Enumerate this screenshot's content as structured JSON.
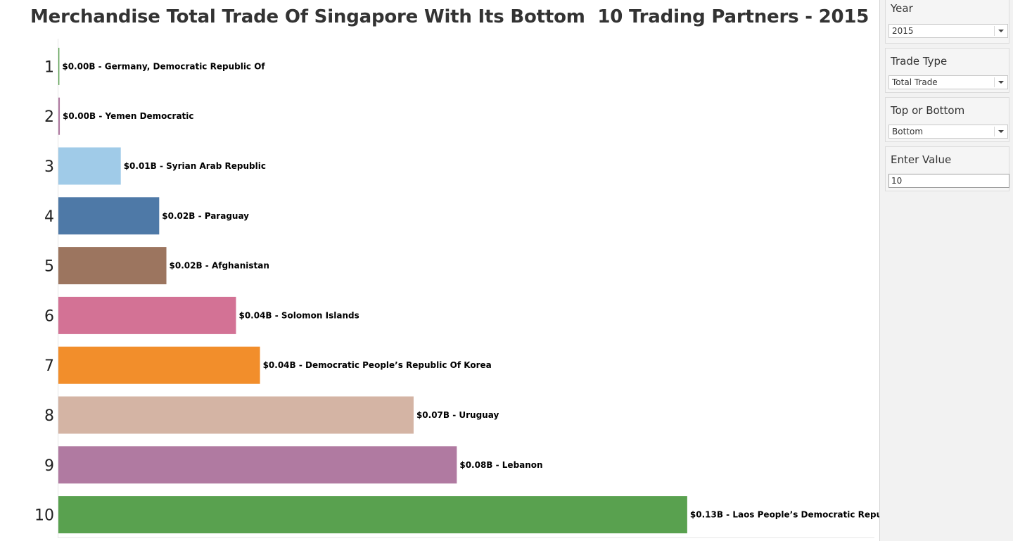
{
  "chart_data": {
    "type": "bar",
    "orientation": "horizontal",
    "title": "Merchandise Total Trade Of Singapore With Its Bottom  10 Trading Partners - 2015",
    "unit_prefix": "$",
    "unit_suffix": "B",
    "xlim": [
      0,
      0.17
    ],
    "grid": false,
    "categories": [
      "1",
      "2",
      "3",
      "4",
      "5",
      "6",
      "7",
      "8",
      "9",
      "10"
    ],
    "values": [
      0.0002,
      0.0003,
      0.013,
      0.021,
      0.0225,
      0.037,
      0.042,
      0.074,
      0.083,
      0.131
    ],
    "value_labels": [
      "$0.00B",
      "$0.00B",
      "$0.01B",
      "$0.02B",
      "$0.02B",
      "$0.04B",
      "$0.04B",
      "$0.07B",
      "$0.08B",
      "$0.13B"
    ],
    "partners": [
      "Germany, Democratic Republic Of",
      "Yemen Democratic",
      "Syrian Arab Republic",
      "Paraguay",
      "Afghanistan",
      "Solomon Islands",
      "Democratic People’s Republic Of Korea",
      "Uruguay",
      "Lebanon",
      "Laos People’s Democratic Republic"
    ],
    "colors": [
      "#59a14f",
      "#b07aa1",
      "#a0cbe8",
      "#4e79a7",
      "#9c755f",
      "#d37295",
      "#f28e2b",
      "#d4b4a4",
      "#b07aa1",
      "#59a14f"
    ]
  },
  "filters": {
    "year": {
      "title": "Year",
      "value": "2015"
    },
    "trade_type": {
      "title": "Trade Type",
      "value": "Total Trade"
    },
    "top_or_bottom": {
      "title": "Top or Bottom",
      "value": "Bottom"
    },
    "enter_value": {
      "title": "Enter Value",
      "value": "10"
    }
  }
}
